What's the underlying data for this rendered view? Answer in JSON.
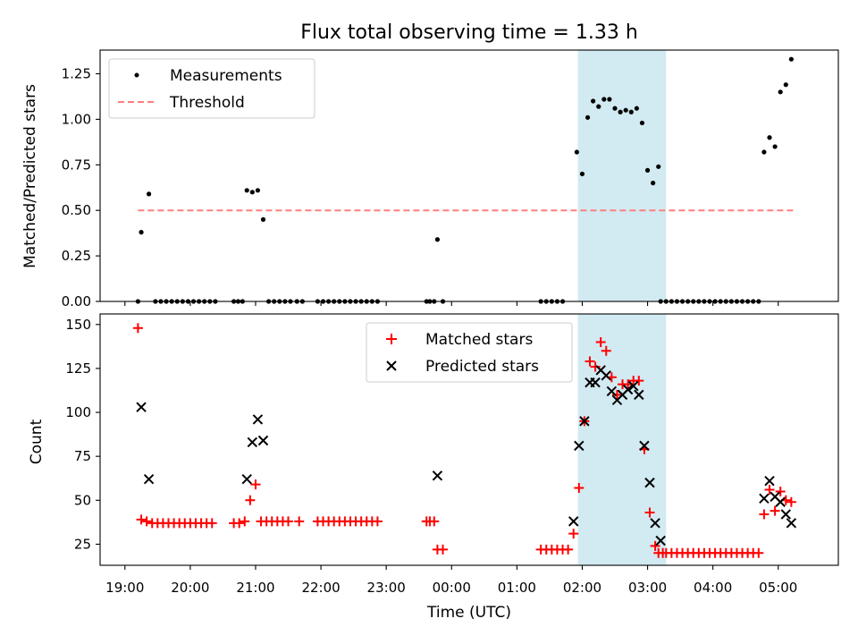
{
  "chart_data": [
    {
      "type": "scatter",
      "title": "Flux total observing time = 1.33 h",
      "xlabel": "",
      "ylabel": "Matched/Predicted stars",
      "ylim": [
        0,
        1.38
      ],
      "y_ticks": [
        "0.00",
        "0.25",
        "0.50",
        "0.75",
        "1.00",
        "1.25"
      ],
      "legend_position": "top-left",
      "highlight_span": {
        "start": "01:56",
        "end": "03:17",
        "color": "#add8e6"
      },
      "series": [
        {
          "name": "Measurements",
          "color": "#000000",
          "marker": "dot",
          "points": [
            [
              "19:12",
              0
            ],
            [
              "19:15",
              0.38
            ],
            [
              "19:22",
              0.59
            ],
            [
              "19:28",
              0
            ],
            [
              "19:33",
              0
            ],
            [
              "19:38",
              0
            ],
            [
              "19:43",
              0
            ],
            [
              "19:48",
              0
            ],
            [
              "19:53",
              0
            ],
            [
              "19:58",
              0
            ],
            [
              "20:03",
              0
            ],
            [
              "20:08",
              0
            ],
            [
              "20:13",
              0
            ],
            [
              "20:18",
              0
            ],
            [
              "20:23",
              0
            ],
            [
              "20:40",
              0
            ],
            [
              "20:44",
              0
            ],
            [
              "20:48",
              0
            ],
            [
              "20:52",
              0.61
            ],
            [
              "20:57",
              0.6
            ],
            [
              "21:02",
              0.61
            ],
            [
              "21:07",
              0.45
            ],
            [
              "21:12",
              0
            ],
            [
              "21:17",
              0
            ],
            [
              "21:22",
              0
            ],
            [
              "21:27",
              0
            ],
            [
              "21:32",
              0
            ],
            [
              "21:38",
              0
            ],
            [
              "21:43",
              0
            ],
            [
              "21:57",
              0
            ],
            [
              "22:02",
              0
            ],
            [
              "22:07",
              0
            ],
            [
              "22:12",
              0
            ],
            [
              "22:17",
              0
            ],
            [
              "22:22",
              0
            ],
            [
              "22:27",
              0
            ],
            [
              "22:32",
              0
            ],
            [
              "22:37",
              0
            ],
            [
              "22:42",
              0
            ],
            [
              "22:47",
              0
            ],
            [
              "22:52",
              0
            ],
            [
              "23:37",
              0
            ],
            [
              "23:40",
              0
            ],
            [
              "23:44",
              0
            ],
            [
              "23:47",
              0.34
            ],
            [
              "23:52",
              0
            ],
            [
              "01:22",
              0
            ],
            [
              "01:27",
              0
            ],
            [
              "01:32",
              0
            ],
            [
              "01:37",
              0
            ],
            [
              "01:42",
              0
            ],
            [
              "01:55",
              0.82
            ],
            [
              "02:00",
              0.7
            ],
            [
              "02:05",
              1.01
            ],
            [
              "02:10",
              1.1
            ],
            [
              "02:15",
              1.07
            ],
            [
              "02:20",
              1.11
            ],
            [
              "02:25",
              1.11
            ],
            [
              "02:30",
              1.06
            ],
            [
              "02:35",
              1.04
            ],
            [
              "02:40",
              1.05
            ],
            [
              "02:45",
              1.04
            ],
            [
              "02:50",
              1.06
            ],
            [
              "02:55",
              0.98
            ],
            [
              "03:00",
              0.72
            ],
            [
              "03:05",
              0.65
            ],
            [
              "03:10",
              0.74
            ],
            [
              "03:12",
              0
            ],
            [
              "03:17",
              0
            ],
            [
              "03:22",
              0
            ],
            [
              "03:27",
              0
            ],
            [
              "03:32",
              0
            ],
            [
              "03:37",
              0
            ],
            [
              "03:42",
              0
            ],
            [
              "03:47",
              0
            ],
            [
              "03:52",
              0
            ],
            [
              "03:57",
              0
            ],
            [
              "04:02",
              0
            ],
            [
              "04:07",
              0
            ],
            [
              "04:12",
              0
            ],
            [
              "04:17",
              0
            ],
            [
              "04:22",
              0
            ],
            [
              "04:27",
              0
            ],
            [
              "04:32",
              0
            ],
            [
              "04:37",
              0
            ],
            [
              "04:42",
              0
            ],
            [
              "04:47",
              0.82
            ],
            [
              "04:52",
              0.9
            ],
            [
              "04:57",
              0.85
            ],
            [
              "05:02",
              1.15
            ],
            [
              "05:07",
              1.19
            ],
            [
              "05:12",
              1.33
            ]
          ]
        },
        {
          "name": "Threshold",
          "color": "#ff7f7f",
          "line_style": "dashed",
          "points": [
            [
              "19:12",
              0.5
            ],
            [
              "05:17",
              0.5
            ]
          ]
        }
      ]
    },
    {
      "type": "scatter",
      "title": "",
      "xlabel": "Time (UTC)",
      "ylabel": "Count",
      "ylim": [
        13,
        156
      ],
      "y_ticks": [
        "25",
        "50",
        "75",
        "100",
        "125",
        "150"
      ],
      "x_ticks": [
        "19:00",
        "20:00",
        "21:00",
        "22:00",
        "23:00",
        "00:00",
        "01:00",
        "02:00",
        "03:00",
        "04:00",
        "05:00"
      ],
      "legend_position": "top-center",
      "highlight_span": {
        "start": "01:56",
        "end": "03:17",
        "color": "#add8e6"
      },
      "series": [
        {
          "name": "Matched stars",
          "color": "#ff0000",
          "marker": "plus",
          "points": [
            [
              "19:12",
              148
            ],
            [
              "19:15",
              39
            ],
            [
              "19:20",
              38
            ],
            [
              "19:25",
              37
            ],
            [
              "19:30",
              37
            ],
            [
              "19:35",
              37
            ],
            [
              "19:40",
              37
            ],
            [
              "19:45",
              37
            ],
            [
              "19:50",
              37
            ],
            [
              "19:55",
              37
            ],
            [
              "20:00",
              37
            ],
            [
              "20:05",
              37
            ],
            [
              "20:10",
              37
            ],
            [
              "20:15",
              37
            ],
            [
              "20:20",
              37
            ],
            [
              "20:40",
              37
            ],
            [
              "20:45",
              37
            ],
            [
              "20:50",
              38
            ],
            [
              "20:55",
              50
            ],
            [
              "21:00",
              59
            ],
            [
              "21:05",
              38
            ],
            [
              "21:10",
              38
            ],
            [
              "21:15",
              38
            ],
            [
              "21:20",
              38
            ],
            [
              "21:25",
              38
            ],
            [
              "21:30",
              38
            ],
            [
              "21:40",
              38
            ],
            [
              "21:57",
              38
            ],
            [
              "22:02",
              38
            ],
            [
              "22:07",
              38
            ],
            [
              "22:12",
              38
            ],
            [
              "22:17",
              38
            ],
            [
              "22:22",
              38
            ],
            [
              "22:27",
              38
            ],
            [
              "22:32",
              38
            ],
            [
              "22:37",
              38
            ],
            [
              "22:42",
              38
            ],
            [
              "22:47",
              38
            ],
            [
              "22:52",
              38
            ],
            [
              "23:37",
              38
            ],
            [
              "23:40",
              38
            ],
            [
              "23:44",
              38
            ],
            [
              "23:47",
              22
            ],
            [
              "23:52",
              22
            ],
            [
              "01:22",
              22
            ],
            [
              "01:27",
              22
            ],
            [
              "01:32",
              22
            ],
            [
              "01:37",
              22
            ],
            [
              "01:42",
              22
            ],
            [
              "01:47",
              22
            ],
            [
              "01:52",
              31
            ],
            [
              "01:57",
              57
            ],
            [
              "02:02",
              95
            ],
            [
              "02:07",
              129
            ],
            [
              "02:12",
              126
            ],
            [
              "02:17",
              140
            ],
            [
              "02:22",
              135
            ],
            [
              "02:27",
              120
            ],
            [
              "02:32",
              110
            ],
            [
              "02:37",
              116
            ],
            [
              "02:42",
              116
            ],
            [
              "02:47",
              118
            ],
            [
              "02:52",
              118
            ],
            [
              "02:57",
              79
            ],
            [
              "03:02",
              43
            ],
            [
              "03:07",
              24
            ],
            [
              "03:10",
              20
            ],
            [
              "03:14",
              20
            ],
            [
              "03:17",
              20
            ],
            [
              "03:22",
              20
            ],
            [
              "03:27",
              20
            ],
            [
              "03:32",
              20
            ],
            [
              "03:37",
              20
            ],
            [
              "03:42",
              20
            ],
            [
              "03:47",
              20
            ],
            [
              "03:52",
              20
            ],
            [
              "03:57",
              20
            ],
            [
              "04:02",
              20
            ],
            [
              "04:07",
              20
            ],
            [
              "04:12",
              20
            ],
            [
              "04:17",
              20
            ],
            [
              "04:22",
              20
            ],
            [
              "04:27",
              20
            ],
            [
              "04:32",
              20
            ],
            [
              "04:37",
              20
            ],
            [
              "04:42",
              20
            ],
            [
              "04:47",
              42
            ],
            [
              "04:52",
              56
            ],
            [
              "04:57",
              44
            ],
            [
              "05:02",
              55
            ],
            [
              "05:07",
              50
            ],
            [
              "05:12",
              49
            ]
          ]
        },
        {
          "name": "Predicted stars",
          "color": "#000000",
          "marker": "x",
          "points": [
            [
              "19:15",
              103
            ],
            [
              "19:22",
              62
            ],
            [
              "20:52",
              62
            ],
            [
              "20:57",
              83
            ],
            [
              "21:02",
              96
            ],
            [
              "21:07",
              84
            ],
            [
              "23:47",
              64
            ],
            [
              "01:52",
              38
            ],
            [
              "01:57",
              81
            ],
            [
              "02:02",
              95
            ],
            [
              "02:07",
              117
            ],
            [
              "02:12",
              117
            ],
            [
              "02:17",
              124
            ],
            [
              "02:22",
              121
            ],
            [
              "02:27",
              112
            ],
            [
              "02:32",
              107
            ],
            [
              "02:37",
              110
            ],
            [
              "02:42",
              113
            ],
            [
              "02:47",
              115
            ],
            [
              "02:52",
              110
            ],
            [
              "02:57",
              81
            ],
            [
              "03:02",
              60
            ],
            [
              "03:07",
              37
            ],
            [
              "03:12",
              27
            ],
            [
              "04:47",
              51
            ],
            [
              "04:52",
              61
            ],
            [
              "04:57",
              52
            ],
            [
              "05:02",
              49
            ],
            [
              "05:07",
              42
            ],
            [
              "05:12",
              37
            ]
          ]
        }
      ]
    }
  ]
}
